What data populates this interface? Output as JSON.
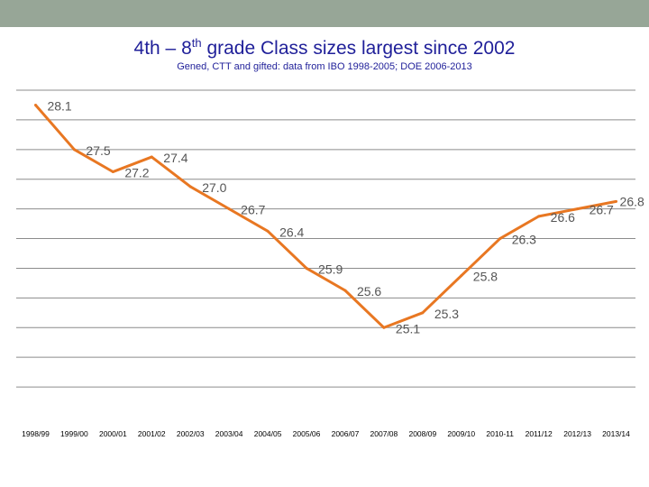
{
  "title_main": "4th – 8",
  "title_sup": "th",
  "title_rest": " grade Class sizes largest since 2002",
  "subtitle": "Gened, CTT and gifted: data from IBO 1998-2005; DOE 2006-2013",
  "colors": {
    "top_bar": "#97a697",
    "title": "#1f1f99",
    "line": "#e87722",
    "grid": "#8c8c8c",
    "label": "#555555"
  },
  "chart_data": {
    "type": "line",
    "title": "4th – 8th grade Class sizes largest since 2002",
    "subtitle": "Gened, CTT and gifted: data from IBO 1998-2005; DOE 2006-2013",
    "categories": [
      "1998/99",
      "1999/00",
      "2000/01",
      "2001/02",
      "2002/03",
      "2003/04",
      "2004/05",
      "2005/06",
      "2006/07",
      "2007/08",
      "2008/09",
      "2009/10",
      "2010-11",
      "2011/12",
      "2012/13",
      "2013/14"
    ],
    "series": [
      {
        "values": [
          28.1,
          27.5,
          27.2,
          27.4,
          27.0,
          26.7,
          26.4,
          25.9,
          25.6,
          25.1,
          25.3,
          25.8,
          26.3,
          26.6,
          26.7,
          26.8
        ],
        "labels": [
          "28.1",
          "27.5",
          "27.2",
          "27.4",
          "27.0",
          "26.7",
          "26.4",
          "25.9",
          "25.6",
          "25.1",
          "25.3",
          "25.8",
          "26.3",
          "26.6",
          "26.7",
          "26.8"
        ]
      }
    ],
    "ylim": [
      23.9,
      28.3
    ],
    "grid": true,
    "legend": "none"
  }
}
